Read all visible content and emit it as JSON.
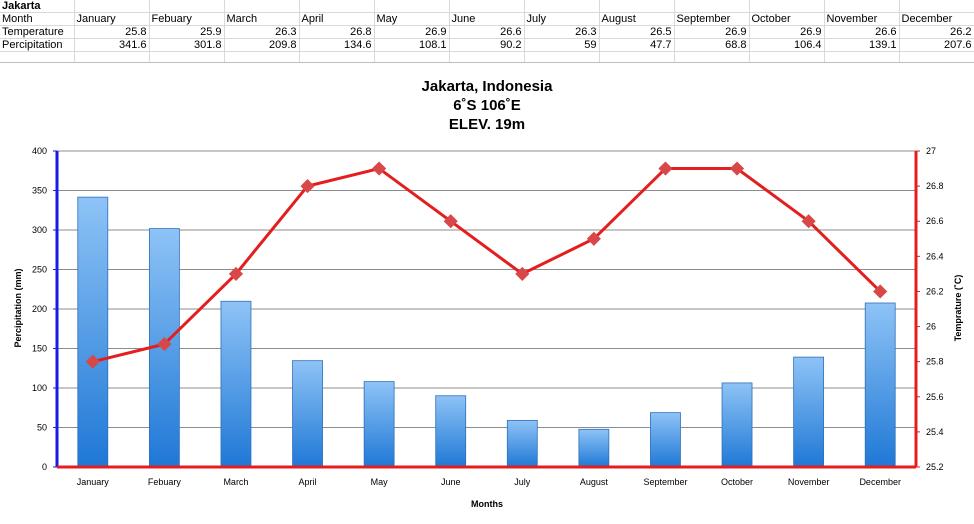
{
  "sheet": {
    "title": "Jakarta",
    "header_label": "Month",
    "rows": [
      {
        "label": "Temperature"
      },
      {
        "label": "Percipitation"
      }
    ]
  },
  "chart_data": {
    "type": "bar",
    "title_lines": [
      "Jakarta, Indonesia",
      "6˚S 106˚E",
      "ELEV. 19m"
    ],
    "xlabel": "Months",
    "ylabel_left": "Percipitation (mm)",
    "ylabel_right": "Temprature (˚C)",
    "categories": [
      "January",
      "Febuary",
      "March",
      "April",
      "May",
      "June",
      "July",
      "August",
      "September",
      "October",
      "November",
      "December"
    ],
    "series": [
      {
        "name": "Temperature",
        "type": "line",
        "axis": "right",
        "values": [
          25.8,
          25.9,
          26.3,
          26.8,
          26.9,
          26.6,
          26.3,
          26.5,
          26.9,
          26.9,
          26.6,
          26.2
        ],
        "color": "#e41e1e"
      },
      {
        "name": "Percipitation",
        "type": "bar",
        "axis": "left",
        "values": [
          341.6,
          301.8,
          209.8,
          134.6,
          108.1,
          90.2,
          59,
          47.7,
          68.8,
          106.4,
          139.1,
          207.6
        ],
        "color": "#3d8fe0"
      }
    ],
    "ylim_left": [
      0,
      400
    ],
    "ylim_right": [
      25.2,
      27
    ],
    "yticks_left": [
      "0",
      "50",
      "100",
      "150",
      "200",
      "250",
      "300",
      "350",
      "400"
    ],
    "yticks_right": [
      "25.2",
      "25.4",
      "25.6",
      "25.8",
      "26",
      "26.2",
      "26.4",
      "26.6",
      "26.8",
      "27"
    ],
    "grid": true,
    "legend": "none",
    "left_axis_color": "#1a1ae6",
    "right_axis_color": "#e41e1e"
  }
}
